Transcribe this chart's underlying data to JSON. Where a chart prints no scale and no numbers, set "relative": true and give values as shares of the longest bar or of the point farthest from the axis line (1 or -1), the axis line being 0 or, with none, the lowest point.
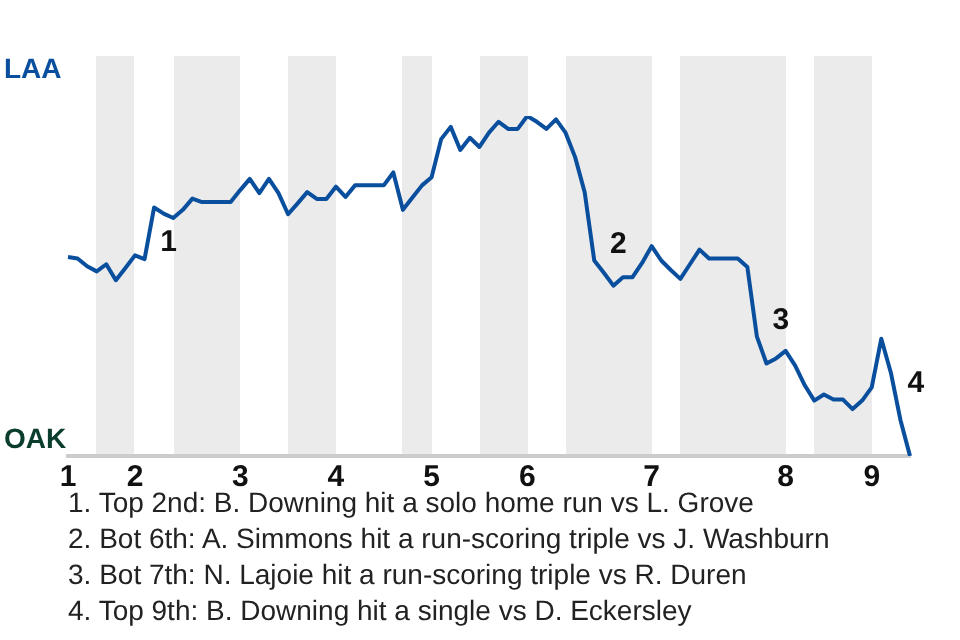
{
  "chart_data": {
    "type": "line",
    "relative": true,
    "categories": [
      "1",
      null,
      null,
      null,
      null,
      null,
      null,
      "2",
      null,
      null,
      null,
      null,
      null,
      null,
      null,
      null,
      null,
      null,
      "3",
      null,
      null,
      null,
      null,
      null,
      null,
      null,
      null,
      null,
      "4",
      null,
      null,
      null,
      null,
      null,
      null,
      null,
      null,
      null,
      "5",
      null,
      null,
      null,
      null,
      null,
      null,
      null,
      null,
      null,
      "6",
      null,
      null,
      null,
      null,
      null,
      null,
      null,
      null,
      null,
      null,
      null,
      null,
      "7",
      null,
      null,
      null,
      null,
      null,
      null,
      null,
      null,
      null,
      null,
      null,
      null,
      null,
      "8",
      null,
      null,
      null,
      null,
      null,
      null,
      null,
      null,
      "9",
      null,
      null,
      null,
      null
    ],
    "series": [
      {
        "color": "#0a4f9e",
        "values": [
          0.585,
          0.581,
          0.558,
          0.543,
          0.564,
          0.517,
          0.553,
          0.59,
          0.579,
          0.731,
          0.713,
          0.7,
          0.724,
          0.757,
          0.747,
          0.747,
          0.747,
          0.747,
          0.782,
          0.815,
          0.773,
          0.815,
          0.773,
          0.711,
          0.743,
          0.776,
          0.756,
          0.756,
          0.792,
          0.762,
          0.796,
          0.796,
          0.796,
          0.796,
          0.834,
          0.724,
          0.76,
          0.796,
          0.82,
          0.932,
          0.968,
          0.9,
          0.936,
          0.909,
          0.951,
          0.983,
          0.962,
          0.962,
          1,
          0.983,
          0.962,
          0.99,
          0.951,
          0.879,
          0.776,
          0.575,
          0.539,
          0.501,
          0.526,
          0.526,
          0.568,
          0.617,
          0.575,
          0.547,
          0.521,
          0.564,
          0.607,
          0.581,
          0.581,
          0.581,
          0.581,
          0.556,
          0.351,
          0.272,
          0.287,
          0.309,
          0.266,
          0.208,
          0.163,
          0.181,
          0.166,
          0.166,
          0.138,
          0.163,
          0.202,
          0.345,
          0.245,
          0.106,
          0
        ]
      }
    ],
    "legend": false,
    "marker": "none",
    "line_style": "solid",
    "annotations": [
      "LAA",
      "OAK",
      "1",
      "2",
      "3",
      "4",
      "1. Top 2nd: B. Downing hit a solo home run vs L. Grove",
      "2. Bot 6th: A. Simmons hit a run-scoring triple vs J. Washburn",
      "3. Bot 7th: N. Lajoie hit a run-scoring triple vs R. Duren",
      "4. Top 9th: B. Downing hit a single vs D. Eckersley"
    ]
  }
}
